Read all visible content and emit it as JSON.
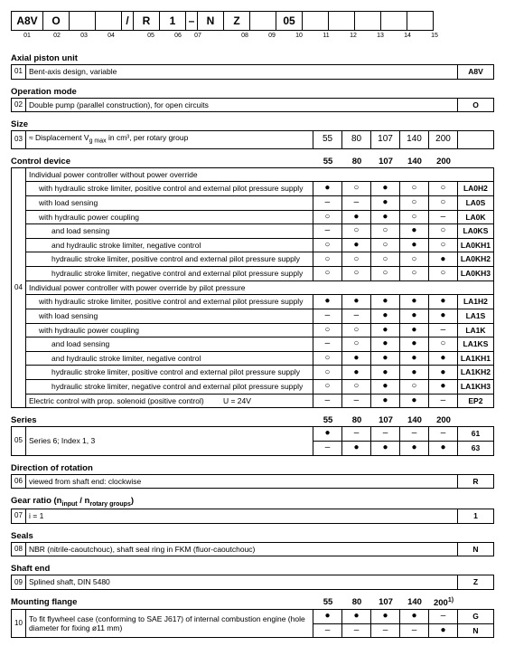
{
  "typecode": {
    "cells": [
      "A8V",
      "O",
      "",
      "",
      "/",
      "R",
      "1",
      "–",
      "N",
      "Z",
      "",
      "05",
      "",
      "",
      "",
      "",
      ""
    ],
    "widths": [
      36,
      30,
      30,
      30,
      14,
      30,
      30,
      14,
      30,
      30,
      30,
      30,
      30,
      30,
      30,
      30,
      30
    ],
    "indices": [
      "01",
      "02",
      "03",
      "04",
      "",
      "05",
      "06",
      "07",
      "",
      "08",
      "09",
      "10",
      "11",
      "12",
      "13",
      "14",
      "15"
    ]
  },
  "sections": [
    {
      "id": "01",
      "title": "Axial piston unit",
      "rows": [
        {
          "label": "Bent-axis design, variable",
          "code": "A8V"
        }
      ]
    },
    {
      "id": "02",
      "title": "Operation mode",
      "rows": [
        {
          "label": "Double pump (parallel construction), for open circuits",
          "code": "O"
        }
      ]
    },
    {
      "id": "03",
      "title": "Size",
      "rows": [
        {
          "label": "≈ Displacement V<sub>g max</sub> in cm³, per rotary group",
          "marks": [
            "55",
            "80",
            "107",
            "140",
            "200"
          ],
          "code": ""
        }
      ]
    },
    {
      "id": "04",
      "title": "Control device",
      "cols": [
        "55",
        "80",
        "107",
        "140",
        "200"
      ],
      "rows": [
        {
          "label": "Individual power controller without power override",
          "span": true
        },
        {
          "label": "with hydraulic stroke limiter, positive control and external pilot pressure supply",
          "indent": 1,
          "marks": [
            "●",
            "○",
            "●",
            "○",
            "○"
          ],
          "code": "LA0H2"
        },
        {
          "label": "with load sensing",
          "indent": 1,
          "marks": [
            "–",
            "–",
            "●",
            "○",
            "○"
          ],
          "code": "LA0S"
        },
        {
          "label": "with hydraulic power coupling",
          "indent": 1,
          "marks": [
            "○",
            "●",
            "●",
            "○",
            "–"
          ],
          "code": "LA0K"
        },
        {
          "label": "and load sensing",
          "indent": 2,
          "marks": [
            "–",
            "○",
            "○",
            "●",
            "○"
          ],
          "code": "LA0KS"
        },
        {
          "label": "and hydraulic stroke limiter, negative control",
          "indent": 2,
          "marks": [
            "○",
            "●",
            "○",
            "●",
            "○"
          ],
          "code": "LA0KH1"
        },
        {
          "label": "hydraulic stroke limiter, positive control and external pilot pressure supply",
          "indent": 2,
          "marks": [
            "○",
            "○",
            "○",
            "○",
            "●"
          ],
          "code": "LA0KH2"
        },
        {
          "label": "hydraulic stroke limiter, negative control and external pilot pressure supply",
          "indent": 2,
          "marks": [
            "○",
            "○",
            "○",
            "○",
            "○"
          ],
          "code": "LA0KH3"
        },
        {
          "label": "Individual power controller with power override by pilot pressure",
          "span": true
        },
        {
          "label": "with hydraulic stroke limiter, positive control and external pilot pressure supply",
          "indent": 1,
          "marks": [
            "●",
            "●",
            "●",
            "●",
            "●"
          ],
          "code": "LA1H2"
        },
        {
          "label": "with load sensing",
          "indent": 1,
          "marks": [
            "–",
            "–",
            "●",
            "●",
            "●"
          ],
          "code": "LA1S"
        },
        {
          "label": "with hydraulic power coupling",
          "indent": 1,
          "marks": [
            "○",
            "○",
            "●",
            "●",
            "–"
          ],
          "code": "LA1K"
        },
        {
          "label": "and load sensing",
          "indent": 2,
          "marks": [
            "–",
            "○",
            "●",
            "●",
            "○"
          ],
          "code": "LA1KS"
        },
        {
          "label": "and hydraulic stroke limiter, negative control",
          "indent": 2,
          "marks": [
            "○",
            "●",
            "●",
            "●",
            "●"
          ],
          "code": "LA1KH1"
        },
        {
          "label": "hydraulic stroke limiter, positive control and external pilot pressure supply",
          "indent": 2,
          "marks": [
            "○",
            "●",
            "●",
            "●",
            "●"
          ],
          "code": "LA1KH2"
        },
        {
          "label": "hydraulic stroke limiter, negative control and external pilot pressure supply",
          "indent": 2,
          "marks": [
            "○",
            "○",
            "●",
            "○",
            "●"
          ],
          "code": "LA1KH3"
        },
        {
          "label": "Electric control with prop. solenoid (positive control)&nbsp;&nbsp;&nbsp;&nbsp;&nbsp;&nbsp;&nbsp;&nbsp;&nbsp;U = 24V",
          "marks": [
            "–",
            "–",
            "●",
            "●",
            "–"
          ],
          "code": "EP2"
        }
      ]
    },
    {
      "id": "05",
      "title": "Series",
      "cols": [
        "55",
        "80",
        "107",
        "140",
        "200"
      ],
      "rows": [
        {
          "label": "Series 6; Index 1, 3",
          "marks": [
            "●",
            "–",
            "–",
            "–",
            "–"
          ],
          "code": "61",
          "rowspan": 2
        },
        {
          "label": "",
          "marks": [
            "–",
            "●",
            "●",
            "●",
            "●"
          ],
          "code": "63"
        }
      ]
    },
    {
      "id": "06",
      "title": "Direction of rotation",
      "rows": [
        {
          "label": "viewed from shaft end: clockwise",
          "code": "R"
        }
      ]
    },
    {
      "id": "07",
      "title": "Gear ratio (n<sub>input</sub> / n<sub>rotary groups</sub>)",
      "rows": [
        {
          "label": "i = 1",
          "code": "1"
        }
      ]
    },
    {
      "id": "08",
      "title": "Seals",
      "rows": [
        {
          "label": "NBR (nitrile-caoutchouc), shaft seal ring in FKM (fluor-caoutchouc)",
          "code": "N"
        }
      ]
    },
    {
      "id": "09",
      "title": "Shaft end",
      "rows": [
        {
          "label": "Splined shaft, DIN 5480",
          "code": "Z"
        }
      ]
    },
    {
      "id": "10",
      "title": "Mounting flange",
      "cols": [
        "55",
        "80",
        "107",
        "140",
        "200<sup>1)</sup>"
      ],
      "rows": [
        {
          "label": "To fit flywheel case (conforming to SAE J617) of internal combustion engine (hole diameter for fixing ø11 mm)",
          "marks": [
            "●",
            "●",
            "●",
            "●",
            "–"
          ],
          "code": "G",
          "rowspan": 2
        },
        {
          "label": "",
          "marks": [
            "–",
            "–",
            "–",
            "–",
            "●"
          ],
          "code": "N"
        }
      ]
    }
  ],
  "colors": {
    "border": "#000000",
    "text": "#000000",
    "bg": "#ffffff"
  }
}
